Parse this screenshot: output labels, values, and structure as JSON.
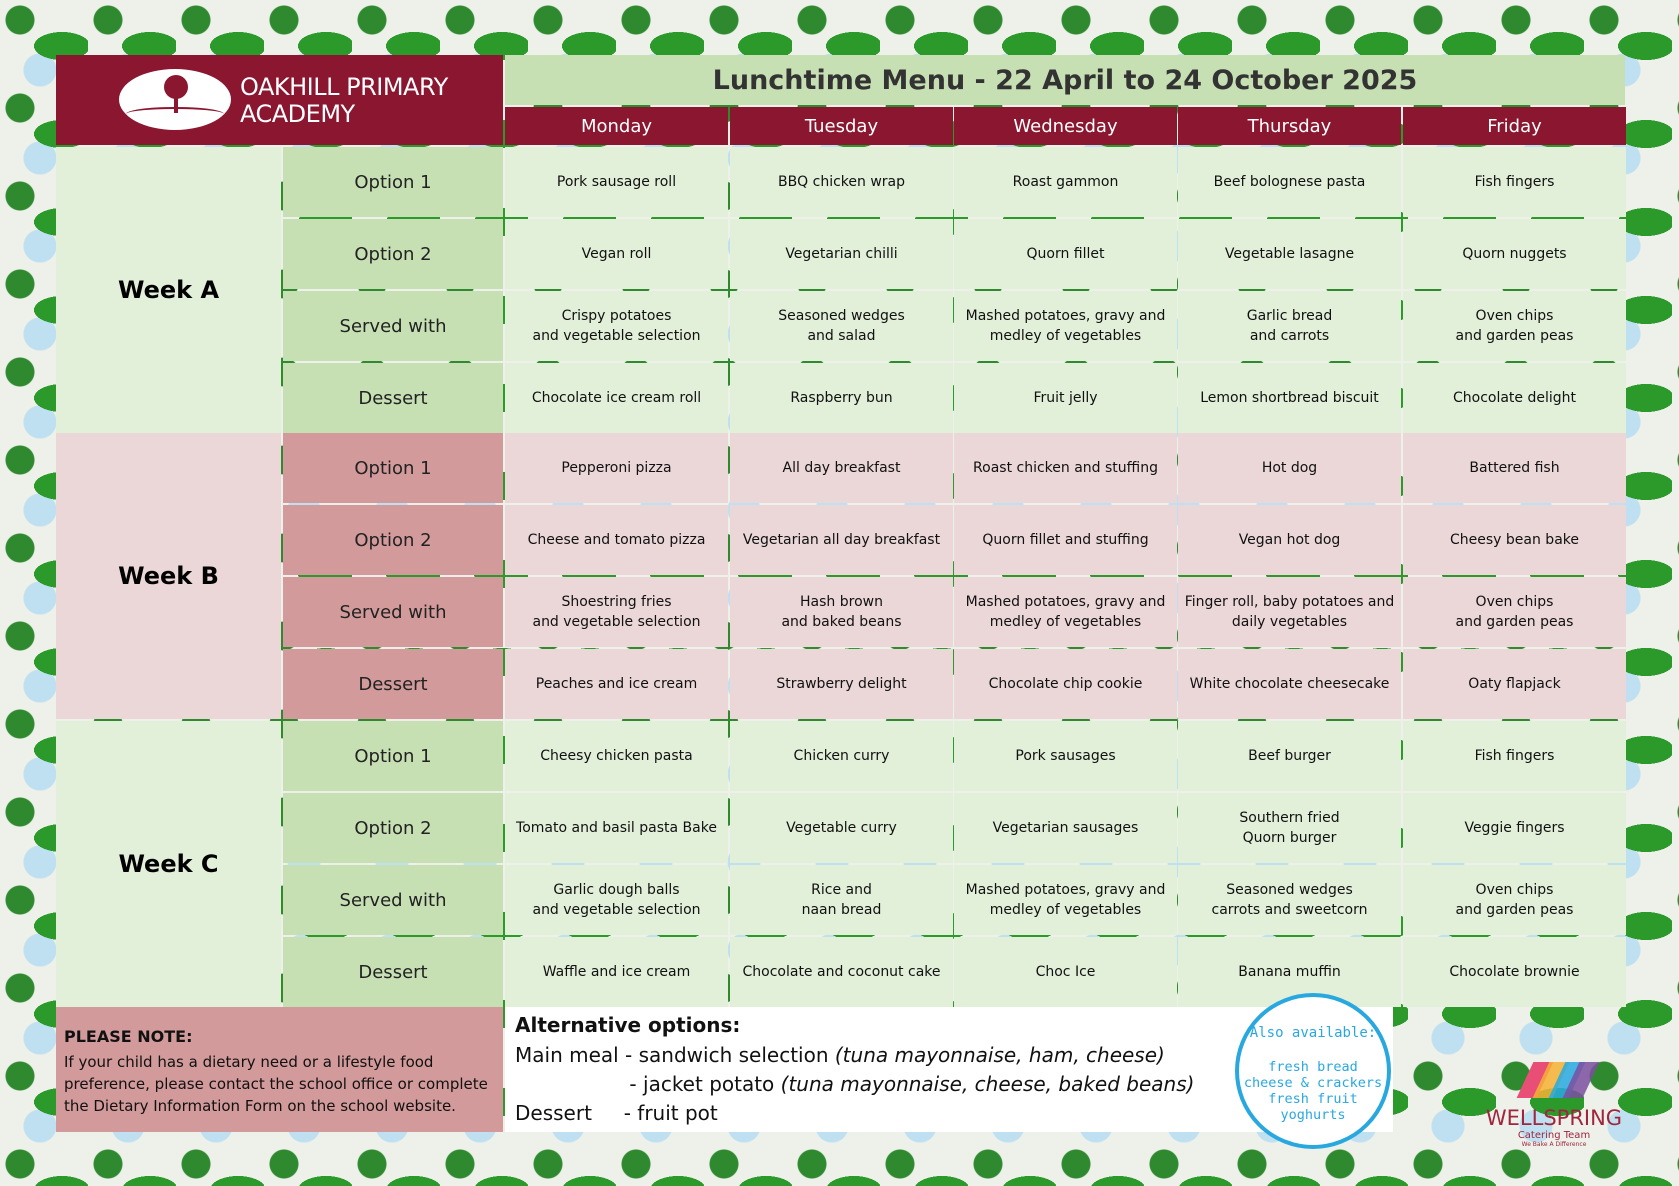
{
  "school": {
    "line1": "OAKHILL PRIMARY",
    "line2": "ACADEMY"
  },
  "title": "Lunchtime Menu - 22 April to 24 October 2025",
  "days": [
    "Monday",
    "Tuesday",
    "Wednesday",
    "Thursday",
    "Friday"
  ],
  "weeks": [
    {
      "label": "Week A",
      "rows": [
        {
          "label": "Option 1",
          "items": [
            "Pork sausage roll",
            "BBQ chicken wrap",
            "Roast gammon",
            "Beef bolognese pasta",
            "Fish fingers"
          ]
        },
        {
          "label": "Option 2",
          "items": [
            "Vegan roll",
            "Vegetarian chilli",
            "Quorn fillet",
            "Vegetable lasagne",
            "Quorn nuggets"
          ]
        },
        {
          "label": "Served with",
          "items": [
            "Crispy potatoes\nand vegetable selection",
            "Seasoned wedges\nand salad",
            "Mashed potatoes, gravy and\nmedley of vegetables",
            "Garlic bread\nand carrots",
            "Oven chips\nand garden peas"
          ]
        },
        {
          "label": "Dessert",
          "items": [
            "Chocolate ice cream roll",
            "Raspberry bun",
            "Fruit jelly",
            "Lemon shortbread biscuit",
            "Chocolate delight"
          ]
        }
      ]
    },
    {
      "label": "Week B",
      "rows": [
        {
          "label": "Option 1",
          "items": [
            "Pepperoni pizza",
            "All day breakfast",
            "Roast chicken and stuffing",
            "Hot dog",
            "Battered fish"
          ]
        },
        {
          "label": "Option 2",
          "items": [
            "Cheese and tomato pizza",
            "Vegetarian all day breakfast",
            "Quorn fillet and stuffing",
            "Vegan hot dog",
            "Cheesy bean bake"
          ]
        },
        {
          "label": "Served with",
          "items": [
            "Shoestring fries\nand vegetable selection",
            "Hash brown\nand baked beans",
            "Mashed potatoes, gravy and\nmedley of vegetables",
            "Finger roll, baby potatoes and\ndaily vegetables",
            "Oven chips\nand garden peas"
          ]
        },
        {
          "label": "Dessert",
          "items": [
            "Peaches and ice cream",
            "Strawberry delight",
            "Chocolate chip cookie",
            "White chocolate cheesecake",
            "Oaty flapjack"
          ]
        }
      ]
    },
    {
      "label": "Week C",
      "rows": [
        {
          "label": "Option 1",
          "items": [
            "Cheesy chicken pasta",
            "Chicken curry",
            "Pork sausages",
            "Beef burger",
            "Fish fingers"
          ]
        },
        {
          "label": "Option 2",
          "items": [
            "Tomato and basil pasta Bake",
            "Vegetable curry",
            "Vegetarian sausages",
            "Southern fried\nQuorn burger",
            "Veggie fingers"
          ]
        },
        {
          "label": "Served with",
          "items": [
            "Garlic dough balls\nand vegetable selection",
            "Rice and\nnaan bread",
            "Mashed potatoes, gravy and\nmedley of vegetables",
            "Seasoned wedges\ncarrots and sweetcorn",
            "Oven chips\nand garden peas"
          ]
        },
        {
          "label": "Dessert",
          "items": [
            "Waffle and ice cream",
            "Chocolate and coconut cake",
            "Choc Ice",
            "Banana muffin",
            "Chocolate brownie"
          ]
        }
      ]
    }
  ],
  "note": {
    "title": "PLEASE NOTE:",
    "text": "If your child has a dietary need or a lifestyle food preference, please contact the school office or complete the Dietary Information Form on the school website."
  },
  "alternatives": {
    "title": "Alternative options:",
    "main_prefix": "Main meal - sandwich selection ",
    "main_detail": "(tuna mayonnaise, ham, cheese)",
    "potato_prefix": "                  - jacket potato ",
    "potato_detail": "(tuna mayonnaise, cheese, baked beans)",
    "dessert": "Dessert     - fruit pot"
  },
  "also_available": {
    "title": "Also available:",
    "items": "fresh bread\ncheese & crackers\nfresh fruit\nyoghurts"
  },
  "caterer": {
    "name": "WELLSPRING",
    "sub": "Catering Team",
    "tagline": "We Bake A Difference"
  },
  "colors": {
    "maroon": "#8a1630",
    "green_light": "#e2efd9",
    "green_mid": "#c6e0b4",
    "pink_light": "#ebd6d8",
    "pink_mid": "#d29a9a",
    "circle_blue": "#29a8e0"
  }
}
